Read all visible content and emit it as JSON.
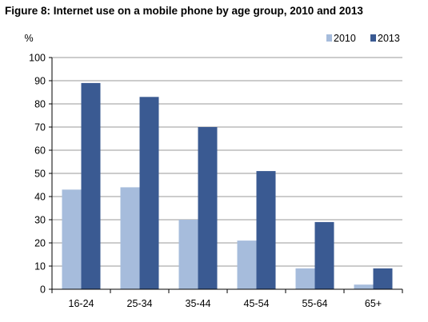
{
  "chart_data": {
    "type": "bar",
    "title": "Figure 8: Internet use on a mobile phone by age group, 2010 and 2013",
    "ylabel": "%",
    "xlabel": "",
    "categories": [
      "16-24",
      "25-34",
      "35-44",
      "45-54",
      "55-64",
      "65+"
    ],
    "series": [
      {
        "name": "2010",
        "color": "#a6bcdc",
        "values": [
          43,
          44,
          30,
          21,
          9,
          2
        ]
      },
      {
        "name": "2013",
        "color": "#3a5a92",
        "values": [
          89,
          83,
          70,
          51,
          29,
          9
        ]
      }
    ],
    "ylim": [
      0,
      100
    ],
    "yticks": [
      0,
      10,
      20,
      30,
      40,
      50,
      60,
      70,
      80,
      90,
      100
    ],
    "grid": true,
    "legend": "top-right"
  }
}
